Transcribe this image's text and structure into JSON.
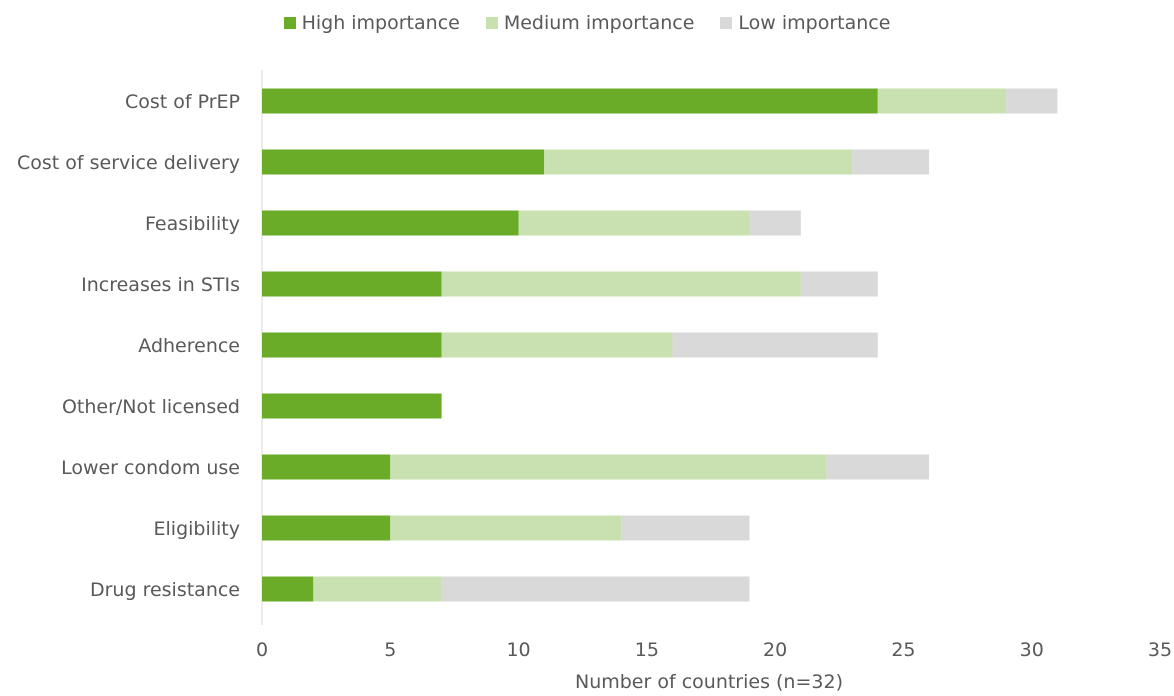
{
  "chart_data": {
    "type": "bar",
    "orientation": "horizontal",
    "stacked": true,
    "categories": [
      "Cost of PrEP",
      "Cost of service delivery",
      "Feasibility",
      "Increases in STIs",
      "Adherence",
      "Other/Not licensed",
      "Lower condom use",
      "Eligibility",
      "Drug resistance"
    ],
    "series": [
      {
        "name": "High importance",
        "color": "#6aab28",
        "values": [
          24,
          11,
          10,
          7,
          7,
          7,
          5,
          5,
          2
        ]
      },
      {
        "name": "Medium importance",
        "color": "#c9e1b0",
        "values": [
          5,
          12,
          9,
          14,
          9,
          0,
          17,
          9,
          5
        ]
      },
      {
        "name": "Low importance",
        "color": "#d9d9d9",
        "values": [
          2,
          3,
          2,
          3,
          8,
          0,
          4,
          5,
          12
        ]
      }
    ],
    "xlabel": "Number of countries (n=32)",
    "ylabel": "",
    "xlim": [
      0,
      35
    ],
    "xticks": [
      0,
      5,
      10,
      15,
      20,
      25,
      30,
      35
    ],
    "grid": false,
    "legend_position": "top"
  }
}
